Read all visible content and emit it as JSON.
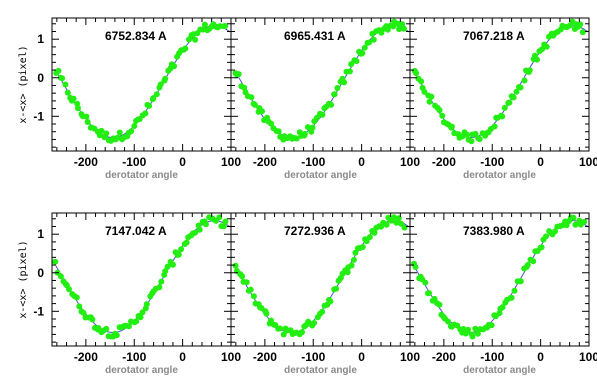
{
  "figure": {
    "xlabel": "derotator angle",
    "ylabel": "x-<x> (pixel)"
  },
  "colors": {
    "points": "#22ee11",
    "fit": "#4a52c8",
    "axis_label": "#8a8a8a"
  },
  "chart_data": [
    {
      "type": "scatter",
      "title": "6752.834 A",
      "xlabel": "derotator angle",
      "ylabel": "x-<x> (pixel)",
      "xlim": [
        -270,
        100
      ],
      "ylim": [
        -1.9,
        1.55
      ],
      "xticks": [
        "-200",
        "-100",
        "0",
        "100"
      ],
      "yticks": [
        "1",
        "0",
        "-1"
      ],
      "fit": {
        "amplitude": 1.45,
        "center_deg": 66,
        "period_deg": 420,
        "offset": -0.1
      }
    },
    {
      "type": "scatter",
      "title": "6965.431 A",
      "xlabel": "derotator angle",
      "ylabel": "x-<x> (pixel)",
      "xlim": [
        -270,
        100
      ],
      "ylim": [
        -1.9,
        1.55
      ],
      "xticks": [
        "-200",
        "-100",
        "0",
        "100"
      ],
      "yticks": [
        "1",
        "0",
        "-1"
      ],
      "fit": {
        "amplitude": 1.45,
        "center_deg": 66,
        "period_deg": 420,
        "offset": -0.1
      }
    },
    {
      "type": "scatter",
      "title": "7067.218 A",
      "xlabel": "derotator angle",
      "ylabel": "x-<x> (pixel)",
      "xlim": [
        -270,
        100
      ],
      "ylim": [
        -1.9,
        1.55
      ],
      "xticks": [
        "-200",
        "-100",
        "0",
        "100"
      ],
      "yticks": [
        "1",
        "0",
        "-1"
      ],
      "fit": {
        "amplitude": 1.45,
        "center_deg": 66,
        "period_deg": 420,
        "offset": -0.1
      }
    },
    {
      "type": "scatter",
      "title": "7147.042 A",
      "xlabel": "derotator angle",
      "ylabel": "x-<x> (pixel)",
      "xlim": [
        -270,
        100
      ],
      "ylim": [
        -1.9,
        1.55
      ],
      "xticks": [
        "-200",
        "-100",
        "0",
        "100"
      ],
      "yticks": [
        "1",
        "0",
        "-1"
      ],
      "fit": {
        "amplitude": 1.45,
        "center_deg": 66,
        "period_deg": 420,
        "offset": -0.1
      }
    },
    {
      "type": "scatter",
      "title": "7272.936 A",
      "xlabel": "derotator angle",
      "ylabel": "x-<x> (pixel)",
      "xlim": [
        -270,
        100
      ],
      "ylim": [
        -1.9,
        1.55
      ],
      "xticks": [
        "-200",
        "-100",
        "0",
        "100"
      ],
      "yticks": [
        "1",
        "0",
        "-1"
      ],
      "fit": {
        "amplitude": 1.45,
        "center_deg": 66,
        "period_deg": 420,
        "offset": -0.1
      }
    },
    {
      "type": "scatter",
      "title": "7383.980 A",
      "xlabel": "derotator angle",
      "ylabel": "x-<x> (pixel)",
      "xlim": [
        -270,
        100
      ],
      "ylim": [
        -1.9,
        1.55
      ],
      "xticks": [
        "-200",
        "-100",
        "0",
        "100"
      ],
      "yticks": [
        "1",
        "0",
        "-1"
      ],
      "fit": {
        "amplitude": 1.45,
        "center_deg": 66,
        "period_deg": 420,
        "offset": -0.1
      }
    }
  ]
}
